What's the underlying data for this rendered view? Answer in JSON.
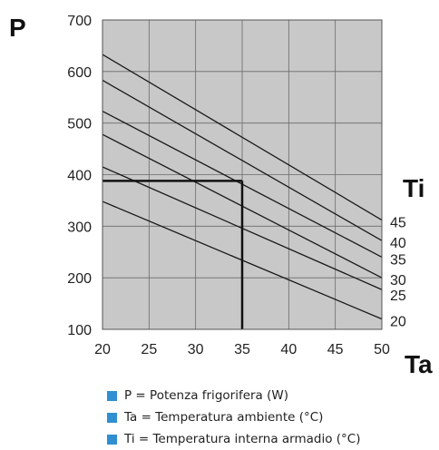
{
  "chart_data": {
    "type": "line",
    "xlabel": "Ta",
    "ylabel": "P",
    "series_title": "Ti",
    "xlim": [
      20,
      50
    ],
    "ylim": [
      100,
      700
    ],
    "x_ticks": [
      20,
      25,
      30,
      35,
      40,
      45,
      50
    ],
    "y_ticks": [
      100,
      200,
      300,
      400,
      500,
      600,
      700
    ],
    "x_tick_labels": [
      "20",
      "25",
      "30",
      "35",
      "40",
      "45",
      "50"
    ],
    "y_tick_labels": [
      "100",
      "200",
      "300",
      "400",
      "500",
      "600",
      "700"
    ],
    "grid": true,
    "plot_background": "#c8c8c8",
    "line_color": "#1a1a1a",
    "series": [
      {
        "name": "45",
        "x": [
          20,
          50
        ],
        "y": [
          633,
          312
        ]
      },
      {
        "name": "40",
        "x": [
          20,
          50
        ],
        "y": [
          583,
          272
        ]
      },
      {
        "name": "35",
        "x": [
          20,
          50
        ],
        "y": [
          523,
          240
        ]
      },
      {
        "name": "30",
        "x": [
          20,
          50
        ],
        "y": [
          478,
          200
        ]
      },
      {
        "name": "25",
        "x": [
          20,
          50
        ],
        "y": [
          415,
          177
        ]
      },
      {
        "name": "20",
        "x": [
          20,
          50
        ],
        "y": [
          348,
          120
        ]
      }
    ],
    "example": {
      "x": 35,
      "y": 388
    },
    "legend": [
      "P = Potenza frigorifera (W)",
      "Ta = Temperatura ambiente (°C)",
      "Ti = Temperatura interna armadio (°C)"
    ],
    "legend_color": "#2f8fd1"
  }
}
